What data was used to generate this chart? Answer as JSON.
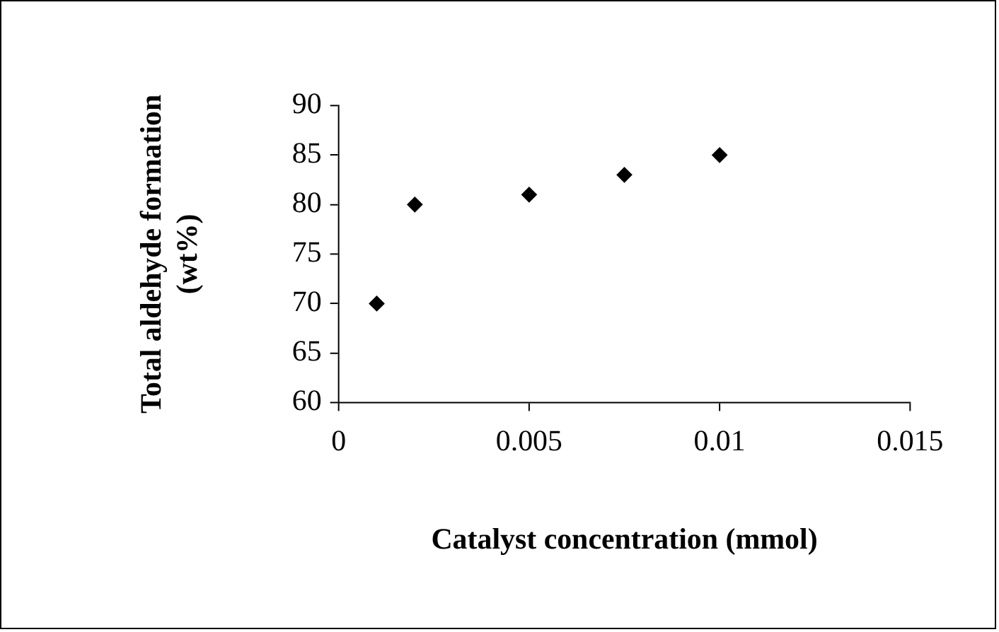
{
  "chart_data": {
    "type": "scatter",
    "xlabel": "Catalyst concentration (mmol)",
    "ylabel": "Total aldehyde formation\n(wt%)",
    "x": [
      0.001,
      0.002,
      0.005,
      0.0075,
      0.01
    ],
    "series": [
      {
        "color": "#000000",
        "values": [
          70,
          80,
          81,
          83,
          85
        ]
      }
    ],
    "xlim": [
      0,
      0.015
    ],
    "xticks": [
      0,
      0.005,
      0.01,
      0.015
    ],
    "ylim": [
      60,
      90
    ],
    "yticks": [
      60,
      65,
      70,
      75,
      80,
      85,
      90
    ],
    "grid": false,
    "legend": false,
    "marker": "diamond"
  }
}
